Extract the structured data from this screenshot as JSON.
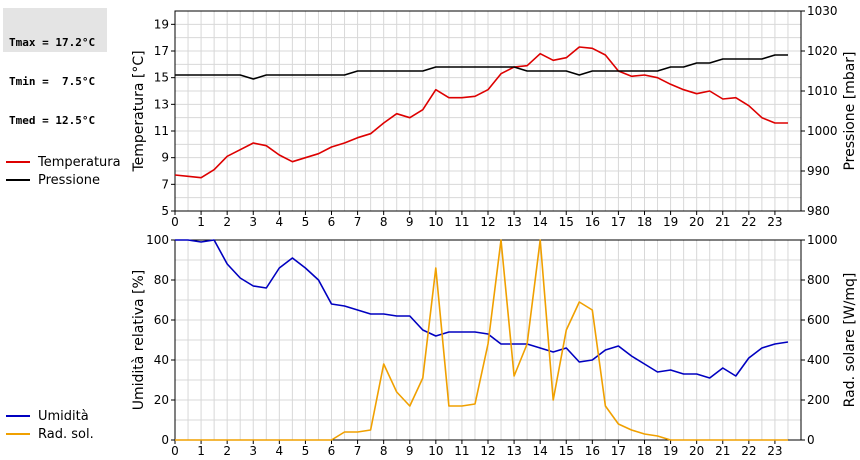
{
  "stats": {
    "tmax": "Tmax = 17.2°C",
    "tmin": "Tmin =  7.5°C",
    "tmed": "Tmed = 12.5°C"
  },
  "legend_top": [
    {
      "label": "Temperatura",
      "color": "#dd0000"
    },
    {
      "label": "Pressione",
      "color": "#000000"
    }
  ],
  "legend_bottom": [
    {
      "label": "Umidità",
      "color": "#0000c0"
    },
    {
      "label": "Rad. sol.",
      "color": "#f0a000"
    }
  ],
  "chart_data": [
    {
      "type": "line",
      "xlabel": "",
      "x_ticks": [
        "0",
        "1",
        "2",
        "3",
        "4",
        "5",
        "6",
        "7",
        "8",
        "9",
        "10",
        "11",
        "12",
        "13",
        "14",
        "15",
        "16",
        "17",
        "18",
        "19",
        "20",
        "21",
        "22",
        "23"
      ],
      "xlim": [
        0,
        24
      ],
      "ylabel_left": "Temperatura [°C]",
      "ylim_left": [
        5,
        20
      ],
      "yticks_left": [
        "5",
        "7",
        "9",
        "11",
        "13",
        "15",
        "17",
        "19"
      ],
      "ylabel_right": "Pressione [mbar]",
      "ylim_right": [
        980,
        1030
      ],
      "yticks_right": [
        "980",
        "990",
        "1000",
        "1010",
        "1020",
        "1030"
      ],
      "grid": true,
      "series": [
        {
          "name": "Temperatura",
          "axis": "left",
          "color": "#dd0000",
          "x": [
            0,
            0.5,
            1,
            1.5,
            2,
            2.5,
            3,
            3.5,
            4,
            4.5,
            5,
            5.5,
            6,
            6.5,
            7,
            7.5,
            8,
            8.5,
            9,
            9.5,
            10,
            10.5,
            11,
            11.5,
            12,
            12.5,
            13,
            13.5,
            14,
            14.5,
            15,
            15.5,
            16,
            16.5,
            17,
            17.5,
            18,
            18.5,
            19,
            19.5,
            20,
            20.5,
            21,
            21.5,
            22,
            22.5,
            23,
            23.5
          ],
          "y": [
            7.7,
            7.6,
            7.5,
            8.1,
            9.1,
            9.6,
            10.1,
            9.9,
            9.2,
            8.7,
            9.0,
            9.3,
            9.8,
            10.1,
            10.5,
            10.8,
            11.6,
            12.3,
            12.0,
            12.6,
            14.1,
            13.5,
            13.5,
            13.6,
            14.1,
            15.3,
            15.8,
            15.9,
            16.8,
            16.3,
            16.5,
            17.3,
            17.2,
            16.7,
            15.5,
            15.1,
            15.2,
            15.0,
            14.5,
            14.1,
            13.8,
            14.0,
            13.4,
            13.5,
            12.9,
            12.0,
            11.6,
            11.6
          ]
        },
        {
          "name": "Pressione",
          "axis": "right",
          "color": "#000000",
          "x": [
            0,
            0.5,
            1,
            1.5,
            2,
            2.5,
            3,
            3.5,
            4,
            4.5,
            5,
            5.5,
            6,
            6.5,
            7,
            7.5,
            8,
            8.5,
            9,
            9.5,
            10,
            10.5,
            11,
            11.5,
            12,
            12.5,
            13,
            13.5,
            14,
            14.5,
            15,
            15.5,
            16,
            16.5,
            17,
            17.5,
            18,
            18.5,
            19,
            19.5,
            20,
            20.5,
            21,
            21.5,
            22,
            22.5,
            23,
            23.5
          ],
          "y": [
            1014,
            1014,
            1014,
            1014,
            1014,
            1014,
            1013,
            1014,
            1014,
            1014,
            1014,
            1014,
            1014,
            1014,
            1015,
            1015,
            1015,
            1015,
            1015,
            1015,
            1016,
            1016,
            1016,
            1016,
            1016,
            1016,
            1016,
            1015,
            1015,
            1015,
            1015,
            1014,
            1015,
            1015,
            1015,
            1015,
            1015,
            1015,
            1016,
            1016,
            1017,
            1017,
            1018,
            1018,
            1018,
            1018,
            1019,
            1019
          ]
        }
      ]
    },
    {
      "type": "line",
      "xlabel": "",
      "x_ticks": [
        "0",
        "1",
        "2",
        "3",
        "4",
        "5",
        "6",
        "7",
        "8",
        "9",
        "10",
        "11",
        "12",
        "13",
        "14",
        "15",
        "16",
        "17",
        "18",
        "19",
        "20",
        "21",
        "22",
        "23"
      ],
      "xlim": [
        0,
        24
      ],
      "ylabel_left": "Umidità relativa [%]",
      "ylim_left": [
        0,
        100
      ],
      "yticks_left": [
        "0",
        "20",
        "40",
        "60",
        "80",
        "100"
      ],
      "ylabel_right": "Rad. solare [W/mq]",
      "ylim_right": [
        0,
        1000
      ],
      "yticks_right": [
        "0",
        "200",
        "400",
        "600",
        "800",
        "1000"
      ],
      "grid": true,
      "series": [
        {
          "name": "Umidità",
          "axis": "left",
          "color": "#0000c0",
          "x": [
            0,
            0.5,
            1,
            1.5,
            2,
            2.5,
            3,
            3.5,
            4,
            4.5,
            5,
            5.5,
            6,
            6.5,
            7,
            7.5,
            8,
            8.5,
            9,
            9.5,
            10,
            10.5,
            11,
            11.5,
            12,
            12.5,
            13,
            13.5,
            14,
            14.5,
            15,
            15.5,
            16,
            16.5,
            17,
            17.5,
            18,
            18.5,
            19,
            19.5,
            20,
            20.5,
            21,
            21.5,
            22,
            22.5,
            23,
            23.5
          ],
          "y": [
            100,
            100,
            99,
            100,
            88,
            81,
            77,
            76,
            86,
            91,
            86,
            80,
            68,
            67,
            65,
            63,
            63,
            62,
            62,
            55,
            52,
            54,
            54,
            54,
            53,
            48,
            48,
            48,
            46,
            44,
            46,
            39,
            40,
            45,
            47,
            42,
            38,
            34,
            35,
            33,
            33,
            31,
            36,
            32,
            41,
            46,
            48,
            49
          ]
        },
        {
          "name": "Rad. sol.",
          "axis": "right",
          "color": "#f0a000",
          "x": [
            0,
            0.5,
            1,
            1.5,
            2,
            2.5,
            3,
            3.5,
            4,
            4.5,
            5,
            5.5,
            6,
            6.5,
            7,
            7.5,
            8,
            8.5,
            9,
            9.5,
            10,
            10.5,
            11,
            11.5,
            12,
            12.5,
            13,
            13.5,
            14,
            14.5,
            15,
            15.5,
            16,
            16.5,
            17,
            17.5,
            18,
            18.5,
            19,
            19.5,
            20,
            20.5,
            21,
            21.5,
            22,
            22.5,
            23,
            23.5
          ],
          "y": [
            0,
            0,
            0,
            0,
            0,
            0,
            0,
            0,
            0,
            0,
            0,
            0,
            0,
            40,
            40,
            50,
            380,
            240,
            170,
            310,
            860,
            170,
            170,
            180,
            480,
            1000,
            320,
            480,
            1000,
            200,
            550,
            690,
            650,
            170,
            80,
            50,
            30,
            20,
            0,
            0,
            0,
            0,
            0,
            0,
            0,
            0,
            0,
            0
          ]
        }
      ]
    }
  ]
}
